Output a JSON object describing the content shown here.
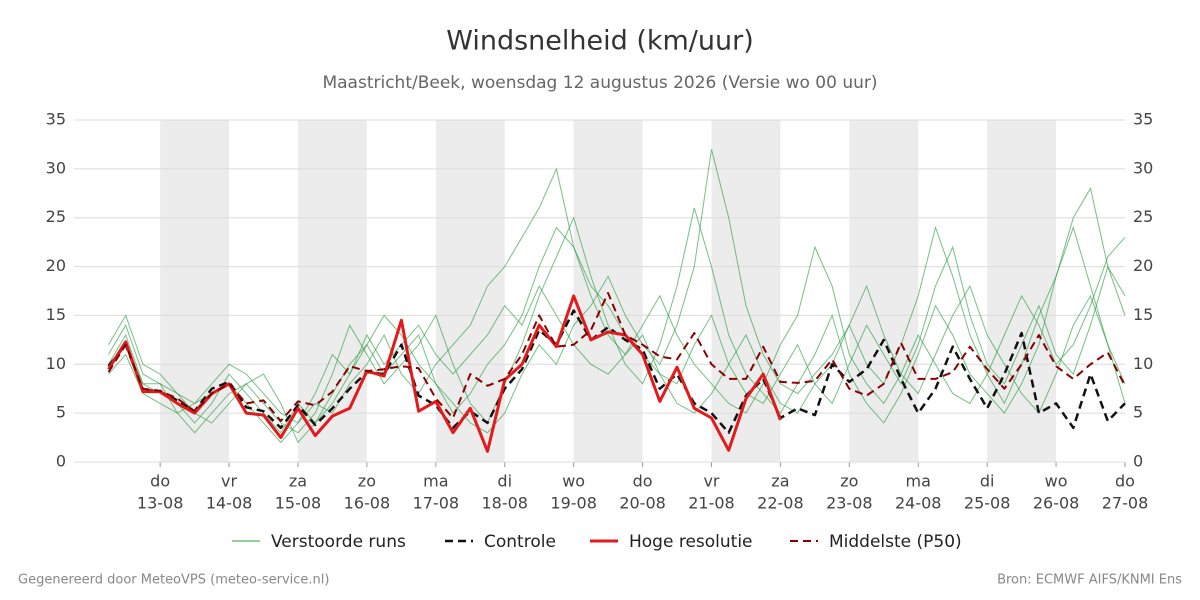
{
  "chart_data": {
    "type": "line",
    "title": "Windsnelheid (km/uur)",
    "subtitle": "Maastricht/Beek, woensdag 12 augustus 2026 (Versie wo 00 uur)",
    "footer_left": "Gegenereerd door MeteoVPS (meteo-service.nl)",
    "footer_right": "Bron: ECMWF AIFS/KNMI Ens",
    "x": [
      0.25,
      0.5,
      0.75,
      1,
      1.25,
      1.5,
      1.75,
      2,
      2.25,
      2.5,
      2.75,
      3,
      3.25,
      3.5,
      3.75,
      4,
      4.25,
      4.5,
      4.75,
      5,
      5.25,
      5.5,
      5.75,
      6,
      6.25,
      6.5,
      6.75,
      7,
      7.25,
      7.5,
      7.75,
      8,
      8.25,
      8.5,
      8.75,
      9,
      9.25,
      9.5,
      9.75,
      10,
      10.25,
      10.5,
      10.75,
      11,
      11.25,
      11.5,
      11.75,
      12,
      12.25,
      12.5,
      12.75,
      13,
      13.25,
      13.5,
      13.75,
      14,
      14.25,
      14.5,
      14.75,
      15
    ],
    "xlim": [
      -0.25,
      15
    ],
    "xticks": [
      {
        "value": 1,
        "label": "13-08"
      },
      {
        "value": 2,
        "label": "14-08"
      },
      {
        "value": 3,
        "label": "15-08"
      },
      {
        "value": 4,
        "label": "16-08"
      },
      {
        "value": 5,
        "label": "17-08"
      },
      {
        "value": 6,
        "label": "18-08"
      },
      {
        "value": 7,
        "label": "19-08"
      },
      {
        "value": 8,
        "label": "20-08"
      },
      {
        "value": 9,
        "label": "21-08"
      },
      {
        "value": 10,
        "label": "22-08"
      },
      {
        "value": 11,
        "label": "23-08"
      },
      {
        "value": 12,
        "label": "24-08"
      },
      {
        "value": 13,
        "label": "25-08"
      },
      {
        "value": 14,
        "label": "26-08"
      },
      {
        "value": 15,
        "label": "27-08"
      }
    ],
    "weekday_labels": [
      "do",
      "vr",
      "za",
      "zo",
      "ma",
      "di",
      "wo",
      "do",
      "vr",
      "za",
      "zo",
      "ma",
      "di",
      "wo",
      "do"
    ],
    "ylim": [
      0,
      35
    ],
    "yticks": [
      0,
      5,
      10,
      15,
      20,
      25,
      30,
      35
    ],
    "grid": true,
    "ensemble": {
      "name": "Verstoorde runs",
      "color": "#2e9e44",
      "members": [
        [
          10,
          13,
          8,
          7,
          6,
          4,
          6,
          9,
          7,
          5,
          3,
          6,
          4,
          7,
          10,
          12,
          9,
          11,
          13,
          8,
          5,
          7,
          10,
          12,
          15,
          20,
          24,
          22,
          18,
          16,
          13,
          11,
          9,
          8,
          12,
          15,
          10,
          7,
          6,
          9,
          12,
          8,
          6,
          10,
          14,
          11,
          8,
          12,
          18,
          22,
          15,
          10,
          8,
          12,
          16,
          11,
          9,
          14,
          20,
          17
        ],
        [
          11,
          14,
          9,
          8,
          5,
          3,
          5,
          7,
          8,
          6,
          4,
          3,
          5,
          9,
          14,
          11,
          8,
          10,
          12,
          15,
          10,
          6,
          4,
          8,
          12,
          17,
          21,
          25,
          19,
          14,
          10,
          8,
          12,
          18,
          26,
          20,
          13,
          9,
          7,
          5,
          8,
          11,
          15,
          9,
          6,
          4,
          7,
          11,
          16,
          13,
          9,
          7,
          5,
          8,
          12,
          19,
          24,
          18,
          12,
          8
        ],
        [
          9,
          11,
          7,
          6,
          5,
          6,
          8,
          10,
          9,
          7,
          5,
          4,
          6,
          5,
          8,
          10,
          13,
          9,
          7,
          10,
          12,
          14,
          18,
          20,
          23,
          26,
          30,
          22,
          17,
          13,
          11,
          14,
          17,
          13,
          10,
          8,
          6,
          5,
          8,
          12,
          15,
          22,
          18,
          11,
          8,
          6,
          9,
          13,
          10,
          7,
          6,
          9,
          13,
          17,
          14,
          10,
          12,
          16,
          21,
          23
        ],
        [
          12,
          15,
          10,
          9,
          7,
          5,
          4,
          6,
          8,
          9,
          6,
          2,
          4,
          6,
          9,
          12,
          15,
          13,
          10,
          8,
          6,
          4,
          3,
          5,
          9,
          12,
          10,
          14,
          16,
          19,
          15,
          12,
          10,
          14,
          20,
          32,
          25,
          16,
          11,
          8,
          7,
          9,
          11,
          14,
          10,
          8,
          12,
          17,
          24,
          19,
          13,
          9,
          6,
          10,
          15,
          19,
          25,
          28,
          20,
          15
        ],
        [
          10,
          12,
          8,
          8,
          7,
          6,
          7,
          8,
          6,
          4,
          2,
          4,
          7,
          11,
          9,
          13,
          10,
          12,
          14,
          11,
          9,
          11,
          13,
          16,
          14,
          18,
          15,
          12,
          10,
          9,
          11,
          13,
          9,
          6,
          5,
          7,
          10,
          13,
          9,
          6,
          5,
          8,
          10,
          14,
          18,
          13,
          9,
          7,
          11,
          15,
          18,
          13,
          10,
          7,
          5,
          9,
          14,
          17,
          12,
          6
        ]
      ]
    },
    "series": [
      {
        "name": "Controle",
        "color": "#111111",
        "dash": true,
        "width": 2.5,
        "values": [
          9.8,
          12,
          7.4,
          7.2,
          6.3,
          5.2,
          7.5,
          8.2,
          5.6,
          5.2,
          3.5,
          5.8,
          3.8,
          5.5,
          7.5,
          9.2,
          9,
          12,
          6.8,
          5.8,
          3.5,
          5.2,
          4,
          7.5,
          9.5,
          13.5,
          12,
          15.5,
          12.5,
          13.8,
          12.5,
          11.5,
          7.5,
          9,
          6,
          5,
          3,
          6.8,
          8.5,
          4.5,
          5.5,
          4.8,
          10,
          8.2,
          9.5,
          12.5,
          8.5,
          5,
          7.5,
          11.8,
          8.5,
          5.5,
          9,
          13.2,
          5,
          6,
          3.5,
          9,
          4.2,
          6
        ]
      },
      {
        "name": "Hoge resolutie",
        "color": "#e31a1c",
        "dash": false,
        "width": 3,
        "values": [
          9.5,
          12.3,
          7.2,
          7.2,
          6,
          5,
          7,
          8,
          5,
          4.8,
          2.5,
          5.5,
          2.7,
          4.7,
          5.5,
          9.3,
          8.8,
          14.5,
          5.2,
          6.2,
          3,
          5.5,
          1.1,
          8.4,
          10,
          14,
          11.8,
          17,
          12.5,
          13.3,
          13,
          11,
          6.2,
          9.7,
          5.5,
          4.5,
          1.2,
          6.5,
          9,
          4.3,
          null,
          null,
          null,
          null,
          null,
          null,
          null,
          null,
          null,
          null,
          null,
          null,
          null,
          null,
          null,
          null,
          null,
          null,
          null,
          null
        ]
      },
      {
        "name": "Middelste (P50)",
        "color": "#8b0000",
        "dash": true,
        "width": 2,
        "values": [
          9.2,
          12,
          7.5,
          7.3,
          6.5,
          5.2,
          7,
          8,
          6,
          6.3,
          4.2,
          6.2,
          5.8,
          7.2,
          9.8,
          9.3,
          9.5,
          9.8,
          9.6,
          6.5,
          4.5,
          9,
          7.8,
          8.5,
          11,
          15,
          11.8,
          12,
          13.5,
          17.3,
          13,
          12,
          10.8,
          10.5,
          13.2,
          10,
          8.5,
          8.5,
          11.8,
          8.2,
          8.1,
          8.3,
          10.5,
          7.5,
          6.8,
          8,
          12.2,
          8.5,
          8.5,
          9.2,
          11.8,
          9.5,
          7.5,
          10,
          13,
          9.8,
          8.5,
          10,
          11.2,
          7.8
        ]
      }
    ]
  }
}
